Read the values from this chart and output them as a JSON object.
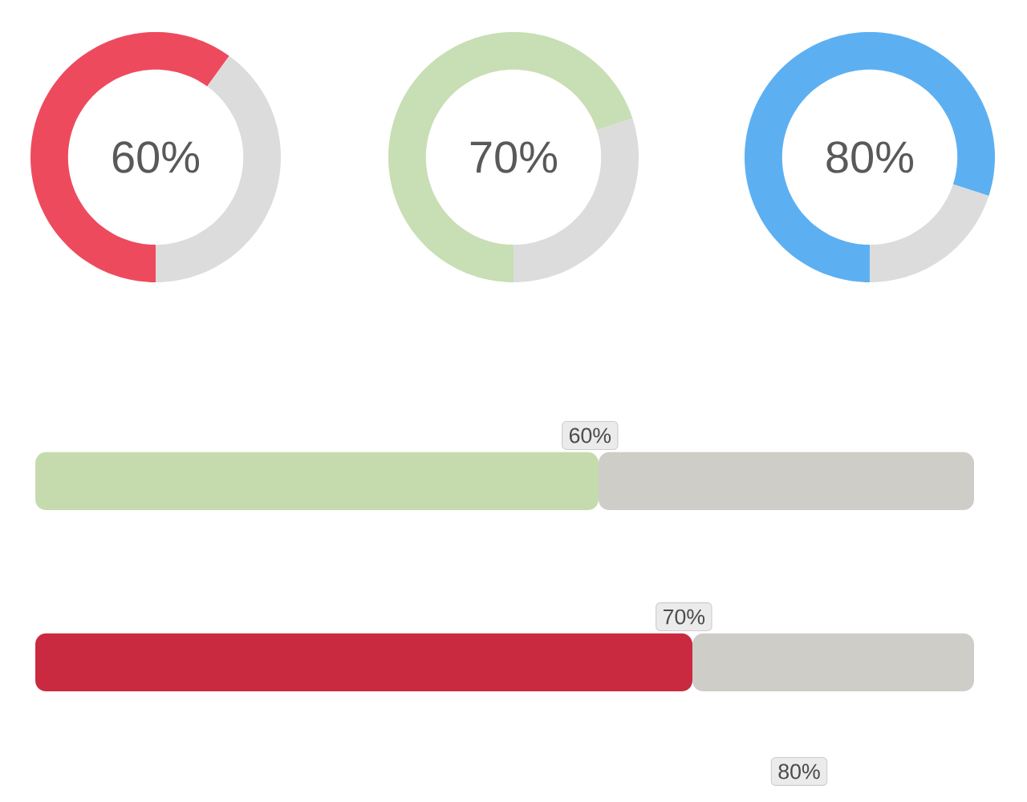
{
  "chart_data": [
    {
      "type": "donut",
      "categories": [
        null,
        null
      ],
      "values": [
        60,
        40
      ],
      "colors": [
        "#ee4a5e",
        "#dcdcdc"
      ],
      "annotations": [
        "60%"
      ]
    },
    {
      "type": "donut",
      "categories": [
        null,
        null
      ],
      "values": [
        70,
        30
      ],
      "colors": [
        "#c8deb4",
        "#dcdcdc"
      ],
      "annotations": [
        "70%"
      ]
    },
    {
      "type": "donut",
      "categories": [
        null,
        null
      ],
      "values": [
        80,
        20
      ],
      "colors": [
        "#5cb0f2",
        "#dcdcdc"
      ],
      "annotations": [
        "80%"
      ]
    },
    {
      "type": "bar",
      "orientation": "horizontal",
      "stacked": true,
      "categories": [
        null,
        null
      ],
      "xlim": [
        0,
        100
      ],
      "series": [
        {
          "colors": [
            "#c5dbae",
            "#c92a40"
          ],
          "values": [
            60,
            70
          ],
          "value_labels": [
            "60%",
            "70%"
          ]
        },
        {
          "color": "#cfcdc8",
          "values": [
            40,
            30
          ]
        }
      ],
      "annotations": [
        "80%"
      ]
    }
  ]
}
